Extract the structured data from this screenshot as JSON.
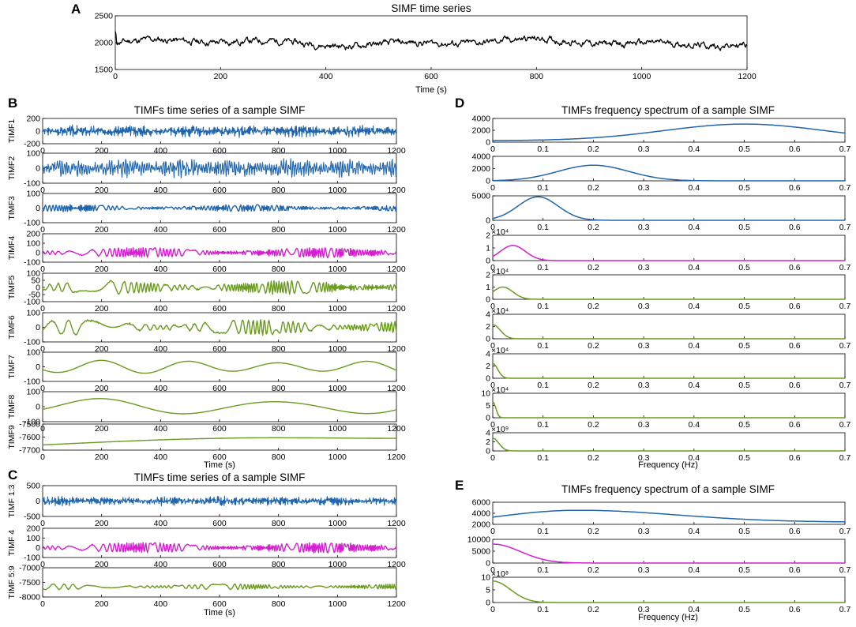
{
  "figure": {
    "colors": {
      "blue": "#2166ac",
      "magenta": "#d41fd1",
      "green": "#6a9b1e",
      "black": "#000000"
    }
  },
  "chart_data": [
    {
      "panel": "A",
      "type": "line",
      "title": "SIMF time series",
      "xlabel": "Time (s)",
      "ylabel": "",
      "xlim": [
        0,
        1200
      ],
      "ylim": [
        1500,
        2500
      ],
      "xticks": [
        "0",
        "200",
        "400",
        "600",
        "800",
        "1000",
        "1200"
      ],
      "yticks": [
        "1500",
        "2000",
        "2500"
      ],
      "series": [
        {
          "name": "SIMF",
          "color": "#000000",
          "mean": 2000,
          "amplitude": 120,
          "smoothness": 0.25,
          "seed": 11
        }
      ]
    },
    {
      "panel": "B",
      "type": "line",
      "title": "TIMFs time series of a sample SIMF",
      "xlabel": "Time (s)",
      "xlim": [
        0,
        1200
      ],
      "xticks": [
        "0",
        "200",
        "400",
        "600",
        "800",
        "1000",
        "1200"
      ],
      "subplots": [
        {
          "ylabel": "TIMF1",
          "ylim": [
            -200,
            200
          ],
          "yticks": [
            "-200",
            "0",
            "200"
          ],
          "color": "#2166ac",
          "wave": {
            "mode": "noise",
            "amplitude": 70,
            "period": 4,
            "seed": 3
          }
        },
        {
          "ylabel": "TIMF2",
          "ylim": [
            -100,
            100
          ],
          "yticks": [
            "-100",
            "0",
            "100"
          ],
          "color": "#2166ac",
          "wave": {
            "mode": "noise",
            "amplitude": 45,
            "period": 8,
            "seed": 5
          }
        },
        {
          "ylabel": "TIMF3",
          "ylim": [
            -100,
            100
          ],
          "yticks": [
            "-100",
            "0",
            "100"
          ],
          "color": "#2166ac",
          "wave": {
            "mode": "osc",
            "amplitude": 22,
            "period": 12,
            "seed": 7
          }
        },
        {
          "ylabel": "TIMF4",
          "ylim": [
            -100,
            200
          ],
          "yticks": [
            "-100",
            "0",
            "100",
            "200"
          ],
          "color": "#d41fd1",
          "wave": {
            "mode": "osc",
            "amplitude": 50,
            "period": 30,
            "seed": 9
          }
        },
        {
          "ylabel": "TIMF5",
          "ylim": [
            -100,
            100
          ],
          "yticks": [
            "-100",
            "-50",
            "0",
            "50",
            "100"
          ],
          "color": "#6a9b1e",
          "wave": {
            "mode": "osc",
            "amplitude": 45,
            "period": 55,
            "seed": 13
          }
        },
        {
          "ylabel": "TIMF6",
          "ylim": [
            -100,
            100
          ],
          "yticks": [
            "-100",
            "0",
            "100"
          ],
          "color": "#6a9b1e",
          "wave": {
            "mode": "osc",
            "amplitude": 50,
            "period": 110,
            "seed": 17
          }
        },
        {
          "ylabel": "TIMF7",
          "ylim": [
            -100,
            100
          ],
          "yticks": [
            "-100",
            "0",
            "100"
          ],
          "color": "#6a9b1e",
          "wave": {
            "mode": "sine",
            "amplitude": 45,
            "period": 300,
            "seed": 19
          }
        },
        {
          "ylabel": "TIMF8",
          "ylim": [
            -100,
            100
          ],
          "yticks": [
            "-100",
            "0",
            "100"
          ],
          "color": "#6a9b1e",
          "wave": {
            "mode": "sine",
            "amplitude": 55,
            "period": 600,
            "seed": 23
          }
        },
        {
          "ylabel": "TIMF9",
          "ylim": [
            -7700,
            -7500
          ],
          "yticks": [
            "-7700",
            "-7600",
            "-7500"
          ],
          "color": "#6a9b1e",
          "wave": {
            "mode": "trend",
            "start": -7660,
            "peak": -7605,
            "end": -7610
          }
        }
      ]
    },
    {
      "panel": "C",
      "type": "line",
      "title": "TIMFs time series of a sample SIMF",
      "xlabel": "Time (s)",
      "xlim": [
        0,
        1200
      ],
      "xticks": [
        "0",
        "200",
        "400",
        "600",
        "800",
        "1000",
        "1200"
      ],
      "subplots": [
        {
          "ylabel": "TIMF 1:3",
          "ylim": [
            -500,
            500
          ],
          "yticks": [
            "-500",
            "0",
            "500"
          ],
          "color": "#2166ac",
          "wave": {
            "mode": "noise",
            "amplitude": 110,
            "period": 4,
            "seed": 29
          }
        },
        {
          "ylabel": "TIMF 4",
          "ylim": [
            -100,
            200
          ],
          "yticks": [
            "-100",
            "0",
            "100",
            "200"
          ],
          "color": "#d41fd1",
          "wave": {
            "mode": "osc",
            "amplitude": 50,
            "period": 30,
            "seed": 9
          }
        },
        {
          "ylabel": "TIMF 5:9",
          "ylim": [
            -8000,
            -7000
          ],
          "yticks": [
            "-8000",
            "-7500",
            "-7000"
          ],
          "color": "#6a9b1e",
          "wave": {
            "mode": "osc",
            "amplitude": 90,
            "period": 70,
            "offset": -7650,
            "seed": 31
          }
        }
      ]
    },
    {
      "panel": "D",
      "type": "line",
      "title": "TIMFs frequency spectrum of a sample SIMF",
      "xlabel": "Frequency (Hz)",
      "xlim": [
        0,
        0.7
      ],
      "xticks": [
        "0",
        "0.1",
        "0.2",
        "0.3",
        "0.4",
        "0.5",
        "0.6",
        "0.7"
      ],
      "subplots": [
        {
          "ylim": [
            0,
            4000
          ],
          "yticks": [
            "0",
            "2000",
            "4000"
          ],
          "exponent": "",
          "color": "#2166ac",
          "spectrum": {
            "peak_freq": 0.5,
            "width": 0.16,
            "height": 2800,
            "floor": 250
          }
        },
        {
          "ylim": [
            0,
            4000
          ],
          "yticks": [
            "0",
            "2000",
            "4000"
          ],
          "exponent": "",
          "color": "#2166ac",
          "spectrum": {
            "peak_freq": 0.2,
            "width": 0.07,
            "height": 2550,
            "floor": 0
          }
        },
        {
          "ylim": [
            0,
            5000
          ],
          "yticks": [
            "0",
            "5000"
          ],
          "exponent": "",
          "color": "#2166ac",
          "spectrum": {
            "peak_freq": 0.09,
            "width": 0.04,
            "height": 4800,
            "floor": 0
          }
        },
        {
          "ylim": [
            0,
            2
          ],
          "yticks": [
            "0",
            "1",
            "2"
          ],
          "exponent": "×10⁴",
          "color": "#d41fd1",
          "spectrum": {
            "peak_freq": 0.04,
            "width": 0.025,
            "height": 1.2,
            "floor": 0
          }
        },
        {
          "ylim": [
            0,
            2
          ],
          "yticks": [
            "0",
            "1",
            "2"
          ],
          "exponent": "×10⁴",
          "color": "#6a9b1e",
          "spectrum": {
            "peak_freq": 0.02,
            "width": 0.02,
            "height": 1.0,
            "floor": 0
          }
        },
        {
          "ylim": [
            0,
            4
          ],
          "yticks": [
            "0",
            "2",
            "4"
          ],
          "exponent": "×10⁴",
          "color": "#6a9b1e",
          "spectrum": {
            "peak_freq": 0.0,
            "width": 0.015,
            "height": 2.3,
            "floor": 0
          }
        },
        {
          "ylim": [
            0,
            4
          ],
          "yticks": [
            "0",
            "2",
            "4"
          ],
          "exponent": "×10⁴",
          "color": "#6a9b1e",
          "spectrum": {
            "peak_freq": 0.0,
            "width": 0.01,
            "height": 2.4,
            "floor": 0
          }
        },
        {
          "ylim": [
            0,
            10
          ],
          "yticks": [
            "0",
            "5",
            "10"
          ],
          "exponent": "×10⁴",
          "color": "#6a9b1e",
          "spectrum": {
            "peak_freq": 0.0,
            "width": 0.006,
            "height": 6.5,
            "floor": 0
          }
        },
        {
          "ylim": [
            0,
            4
          ],
          "yticks": [
            "0",
            "2",
            "4"
          ],
          "exponent": "×10⁹",
          "color": "#6a9b1e",
          "spectrum": {
            "peak_freq": 0.0,
            "width": 0.012,
            "height": 2.8,
            "floor": 0
          }
        }
      ]
    },
    {
      "panel": "E",
      "type": "line",
      "title": "TIMFs frequency spectrum of a sample SIMF",
      "xlabel": "Frequency (Hz)",
      "xlim": [
        0,
        0.7
      ],
      "xticks": [
        "0",
        "0.1",
        "0.2",
        "0.3",
        "0.4",
        "0.5",
        "0.6",
        "0.7"
      ],
      "subplots": [
        {
          "ylim": [
            2000,
            6000
          ],
          "yticks": [
            "2000",
            "4000",
            "6000"
          ],
          "exponent": "",
          "color": "#2166ac",
          "spectrum": {
            "mode": "broad",
            "start": 3300,
            "peak_freq": 0.17,
            "peak": 4550,
            "end": 2400
          }
        },
        {
          "ylim": [
            0,
            10000
          ],
          "yticks": [
            "0",
            "5000",
            "10000"
          ],
          "exponent": "",
          "color": "#d41fd1",
          "spectrum": {
            "peak_freq": 0.0,
            "width": 0.055,
            "height": 8000,
            "floor": 0
          }
        },
        {
          "ylim": [
            0,
            10
          ],
          "yticks": [
            "0",
            "5",
            "10"
          ],
          "exponent": "×10⁸",
          "color": "#6a9b1e",
          "spectrum": {
            "peak_freq": 0.0,
            "width": 0.035,
            "height": 8.5,
            "floor": 0
          }
        }
      ]
    }
  ]
}
